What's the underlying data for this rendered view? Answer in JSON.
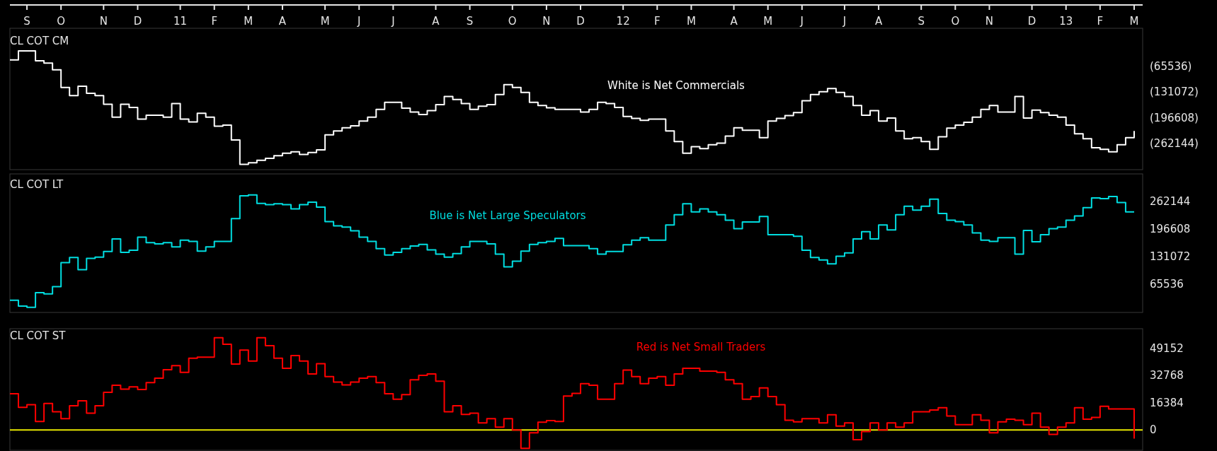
{
  "chart_data": [
    {
      "type": "step",
      "title": "CL COT CM",
      "annotations": [
        "White is Net Commercials"
      ],
      "x": [
        "2010-08-20",
        "2010-08-27",
        "2010-09-03",
        "2010-09-10",
        "2010-09-17",
        "2010-09-24",
        "2010-10-01",
        "2010-10-08",
        "2010-10-15",
        "2010-10-22",
        "2010-10-29",
        "2010-11-05",
        "2010-11-12",
        "2010-11-19",
        "2010-11-26",
        "2010-12-03",
        "2010-12-10",
        "2010-12-17",
        "2010-12-24",
        "2010-12-31",
        "2011-01-07",
        "2011-01-14",
        "2011-01-21",
        "2011-01-28",
        "2011-02-04",
        "2011-02-11",
        "2011-02-18",
        "2011-02-25",
        "2011-03-04",
        "2011-03-11",
        "2011-03-18",
        "2011-03-25",
        "2011-04-01",
        "2011-04-08",
        "2011-04-15",
        "2011-04-22",
        "2011-04-29",
        "2011-05-06",
        "2011-05-13",
        "2011-05-20",
        "2011-05-27",
        "2011-06-03",
        "2011-06-10",
        "2011-06-17",
        "2011-06-24",
        "2011-07-01",
        "2011-07-08",
        "2011-07-15",
        "2011-07-22",
        "2011-07-29",
        "2011-08-05",
        "2011-08-12",
        "2011-08-19",
        "2011-08-26",
        "2011-09-02",
        "2011-09-09",
        "2011-09-16",
        "2011-09-23",
        "2011-09-30",
        "2011-10-07",
        "2011-10-14",
        "2011-10-21",
        "2011-10-28",
        "2011-11-04",
        "2011-11-11",
        "2011-11-18",
        "2011-11-25",
        "2011-12-02",
        "2011-12-09",
        "2011-12-16",
        "2011-12-23",
        "2011-12-30",
        "2012-01-06",
        "2012-01-13",
        "2012-01-20",
        "2012-01-27",
        "2012-02-03",
        "2012-02-10",
        "2012-02-17",
        "2012-02-24",
        "2012-03-02",
        "2012-03-09",
        "2012-03-16",
        "2012-03-23",
        "2012-03-30",
        "2012-04-06",
        "2012-04-13",
        "2012-04-20",
        "2012-04-27",
        "2012-05-04",
        "2012-05-11",
        "2012-05-18",
        "2012-05-25",
        "2012-06-01",
        "2012-06-08",
        "2012-06-15",
        "2012-06-22",
        "2012-06-29",
        "2012-07-06",
        "2012-07-13",
        "2012-07-20",
        "2012-07-27",
        "2012-08-03",
        "2012-08-10",
        "2012-08-17",
        "2012-08-24",
        "2012-08-31",
        "2012-09-07",
        "2012-09-14",
        "2012-09-21",
        "2012-09-28",
        "2012-10-05",
        "2012-10-12",
        "2012-10-19",
        "2012-10-26",
        "2012-11-02",
        "2012-11-09",
        "2012-11-16",
        "2012-11-23",
        "2012-11-30",
        "2012-12-07",
        "2012-12-14",
        "2012-12-21",
        "2012-12-28",
        "2013-01-04",
        "2013-01-11",
        "2013-01-18",
        "2013-01-25",
        "2013-02-01",
        "2013-02-08",
        "2013-02-15",
        "2013-02-22",
        "2013-03-01"
      ],
      "series": [
        {
          "color": "#ffffff",
          "values": [
            -48000,
            -25000,
            -25000,
            -50000,
            -56000,
            -73000,
            -118000,
            -139000,
            -115000,
            -133000,
            -139000,
            -161000,
            -194000,
            -161000,
            -169000,
            -199000,
            -189000,
            -189000,
            -194000,
            -159000,
            -199000,
            -206000,
            -184000,
            -194000,
            -217000,
            -214000,
            -252000,
            -314000,
            -310000,
            -304000,
            -299000,
            -292000,
            -286000,
            -282000,
            -289000,
            -284000,
            -277000,
            -239000,
            -229000,
            -221000,
            -216000,
            -204000,
            -194000,
            -174000,
            -156000,
            -156000,
            -171000,
            -181000,
            -187000,
            -177000,
            -162000,
            -141000,
            -149000,
            -159000,
            -174000,
            -166000,
            -162000,
            -136000,
            -111000,
            -118000,
            -131000,
            -156000,
            -164000,
            -170000,
            -174000,
            -174000,
            -174000,
            -181000,
            -174000,
            -156000,
            -159000,
            -169000,
            -192000,
            -197000,
            -202000,
            -199000,
            -199000,
            -229000,
            -256000,
            -286000,
            -269000,
            -274000,
            -264000,
            -260000,
            -242000,
            -221000,
            -227000,
            -227000,
            -246000,
            -204000,
            -197000,
            -190000,
            -182000,
            -152000,
            -136000,
            -129000,
            -121000,
            -131000,
            -141000,
            -164000,
            -189000,
            -177000,
            -204000,
            -196000,
            -229000,
            -249000,
            -246000,
            -256000,
            -276000,
            -244000,
            -222000,
            -214000,
            -207000,
            -194000,
            -174000,
            -164000,
            -181000,
            -181000,
            -141000,
            -196000,
            -176000,
            -182000,
            -189000,
            -194000,
            -214000,
            -236000,
            -249000,
            -272000,
            -276000,
            -282000,
            -264000,
            -246000,
            -229000
          ]
        }
      ],
      "xlim": [
        "2010-08-20",
        "2013-03-08"
      ],
      "xticks": [
        {
          "value": "2010-09-03",
          "label": "S"
        },
        {
          "value": "2010-10-01",
          "label": "O"
        },
        {
          "value": "2010-11-05",
          "label": "N"
        },
        {
          "value": "2010-12-03",
          "label": "D"
        },
        {
          "value": "2011-01-07",
          "label": "11"
        },
        {
          "value": "2011-02-04",
          "label": "F"
        },
        {
          "value": "2011-03-04",
          "label": "M"
        },
        {
          "value": "2011-04-01",
          "label": "A"
        },
        {
          "value": "2011-05-06",
          "label": "M"
        },
        {
          "value": "2011-06-03",
          "label": "J"
        },
        {
          "value": "2011-07-01",
          "label": "J"
        },
        {
          "value": "2011-08-05",
          "label": "A"
        },
        {
          "value": "2011-09-02",
          "label": "S"
        },
        {
          "value": "2011-10-07",
          "label": "O"
        },
        {
          "value": "2011-11-04",
          "label": "N"
        },
        {
          "value": "2011-12-02",
          "label": "D"
        },
        {
          "value": "2012-01-06",
          "label": "12"
        },
        {
          "value": "2012-02-03",
          "label": "F"
        },
        {
          "value": "2012-03-02",
          "label": "M"
        },
        {
          "value": "2012-04-06",
          "label": "A"
        },
        {
          "value": "2012-05-04",
          "label": "M"
        },
        {
          "value": "2012-06-01",
          "label": "J"
        },
        {
          "value": "2012-07-06",
          "label": "J"
        },
        {
          "value": "2012-08-03",
          "label": "A"
        },
        {
          "value": "2012-09-07",
          "label": "S"
        },
        {
          "value": "2012-10-05",
          "label": "O"
        },
        {
          "value": "2012-11-02",
          "label": "N"
        },
        {
          "value": "2012-12-07",
          "label": "D"
        },
        {
          "value": "2013-01-04",
          "label": "13"
        },
        {
          "value": "2013-02-01",
          "label": "F"
        },
        {
          "value": "2013-03-01",
          "label": "M"
        }
      ],
      "ylim": [
        -327680,
        32768
      ],
      "yticks": [
        {
          "value": -65536,
          "label": "(65536)"
        },
        {
          "value": -131072,
          "label": "(131072)"
        },
        {
          "value": -196608,
          "label": "(196608)"
        },
        {
          "value": -262144,
          "label": "(262144)"
        }
      ]
    },
    {
      "type": "step",
      "title": "CL COT LT",
      "annotations": [
        "Blue is Net Large Speculators"
      ],
      "x": [
        "2010-08-20",
        "2010-08-27",
        "2010-09-03",
        "2010-09-10",
        "2010-09-17",
        "2010-09-24",
        "2010-10-01",
        "2010-10-08",
        "2010-10-15",
        "2010-10-22",
        "2010-10-29",
        "2010-11-05",
        "2010-11-12",
        "2010-11-19",
        "2010-11-26",
        "2010-12-03",
        "2010-12-10",
        "2010-12-17",
        "2010-12-24",
        "2010-12-31",
        "2011-01-07",
        "2011-01-14",
        "2011-01-21",
        "2011-01-28",
        "2011-02-04",
        "2011-02-11",
        "2011-02-18",
        "2011-02-25",
        "2011-03-04",
        "2011-03-11",
        "2011-03-18",
        "2011-03-25",
        "2011-04-01",
        "2011-04-08",
        "2011-04-15",
        "2011-04-22",
        "2011-04-29",
        "2011-05-06",
        "2011-05-13",
        "2011-05-20",
        "2011-05-27",
        "2011-06-03",
        "2011-06-10",
        "2011-06-17",
        "2011-06-24",
        "2011-07-01",
        "2011-07-08",
        "2011-07-15",
        "2011-07-22",
        "2011-07-29",
        "2011-08-05",
        "2011-08-12",
        "2011-08-19",
        "2011-08-26",
        "2011-09-02",
        "2011-09-09",
        "2011-09-16",
        "2011-09-23",
        "2011-09-30",
        "2011-10-07",
        "2011-10-14",
        "2011-10-21",
        "2011-10-28",
        "2011-11-04",
        "2011-11-11",
        "2011-11-18",
        "2011-11-25",
        "2011-12-02",
        "2011-12-09",
        "2011-12-16",
        "2011-12-23",
        "2011-12-30",
        "2012-01-06",
        "2012-01-13",
        "2012-01-20",
        "2012-01-27",
        "2012-02-03",
        "2012-02-10",
        "2012-02-17",
        "2012-02-24",
        "2012-03-02",
        "2012-03-09",
        "2012-03-16",
        "2012-03-23",
        "2012-03-30",
        "2012-04-06",
        "2012-04-13",
        "2012-04-20",
        "2012-04-27",
        "2012-05-04",
        "2012-05-11",
        "2012-05-18",
        "2012-05-25",
        "2012-06-01",
        "2012-06-08",
        "2012-06-15",
        "2012-06-22",
        "2012-06-29",
        "2012-07-06",
        "2012-07-13",
        "2012-07-20",
        "2012-07-27",
        "2012-08-03",
        "2012-08-10",
        "2012-08-17",
        "2012-08-24",
        "2012-08-31",
        "2012-09-07",
        "2012-09-14",
        "2012-09-21",
        "2012-09-28",
        "2012-10-05",
        "2012-10-12",
        "2012-10-19",
        "2012-10-26",
        "2012-11-02",
        "2012-11-09",
        "2012-11-16",
        "2012-11-23",
        "2012-11-30",
        "2012-12-07",
        "2012-12-14",
        "2012-12-21",
        "2012-12-28",
        "2013-01-04",
        "2013-01-11",
        "2013-01-18",
        "2013-01-25",
        "2013-02-01",
        "2013-02-08",
        "2013-02-15",
        "2013-02-22",
        "2013-03-01"
      ],
      "series": [
        {
          "color": "#00dde0",
          "values": [
            29000,
            15000,
            12000,
            47000,
            44000,
            61000,
            118000,
            130000,
            101000,
            128000,
            131000,
            144000,
            174000,
            142000,
            147000,
            178000,
            165000,
            162000,
            165000,
            155000,
            171000,
            168000,
            145000,
            155000,
            168000,
            168000,
            222000,
            276000,
            278000,
            258000,
            255000,
            257000,
            255000,
            245000,
            255000,
            261000,
            249000,
            215000,
            205000,
            202000,
            193000,
            178000,
            168000,
            151000,
            136000,
            142000,
            151000,
            157000,
            161000,
            148000,
            138000,
            131000,
            139000,
            155000,
            168000,
            168000,
            162000,
            138000,
            108000,
            121000,
            145000,
            161000,
            165000,
            168000,
            175000,
            158000,
            158000,
            158000,
            151000,
            138000,
            144000,
            144000,
            160000,
            171000,
            177000,
            171000,
            171000,
            207000,
            231000,
            257000,
            238000,
            245000,
            238000,
            231000,
            218000,
            198000,
            214000,
            214000,
            227000,
            184000,
            184000,
            184000,
            180000,
            147000,
            130000,
            124000,
            115000,
            133000,
            141000,
            174000,
            191000,
            174000,
            207000,
            195000,
            231000,
            251000,
            242000,
            251000,
            268000,
            234000,
            218000,
            215000,
            207000,
            188000,
            171000,
            168000,
            177000,
            177000,
            138000,
            194000,
            167000,
            184000,
            198000,
            202000,
            218000,
            228000,
            248000,
            271000,
            269000,
            274000,
            260000,
            238000,
            238000
          ]
        }
      ],
      "xlim": [
        "2010-08-20",
        "2013-03-08"
      ],
      "tick_labels": "y",
      "ylim": [
        0,
        327680
      ],
      "yticks": [
        65536,
        131072,
        196608,
        262144
      ]
    },
    {
      "type": "step",
      "title": "CL COT ST",
      "annotations": [
        "Red is Net Small Traders"
      ],
      "x": [
        "2010-08-20",
        "2010-08-27",
        "2010-09-03",
        "2010-09-10",
        "2010-09-17",
        "2010-09-24",
        "2010-10-01",
        "2010-10-08",
        "2010-10-15",
        "2010-10-22",
        "2010-10-29",
        "2010-11-05",
        "2010-11-12",
        "2010-11-19",
        "2010-11-26",
        "2010-12-03",
        "2010-12-10",
        "2010-12-17",
        "2010-12-24",
        "2010-12-31",
        "2011-01-07",
        "2011-01-14",
        "2011-01-21",
        "2011-01-28",
        "2011-02-04",
        "2011-02-11",
        "2011-02-18",
        "2011-02-25",
        "2011-03-04",
        "2011-03-11",
        "2011-03-18",
        "2011-03-25",
        "2011-04-01",
        "2011-04-08",
        "2011-04-15",
        "2011-04-22",
        "2011-04-29",
        "2011-05-06",
        "2011-05-13",
        "2011-05-20",
        "2011-05-27",
        "2011-06-03",
        "2011-06-10",
        "2011-06-17",
        "2011-06-24",
        "2011-07-01",
        "2011-07-08",
        "2011-07-15",
        "2011-07-22",
        "2011-07-29",
        "2011-08-05",
        "2011-08-12",
        "2011-08-19",
        "2011-08-26",
        "2011-09-02",
        "2011-09-09",
        "2011-09-16",
        "2011-09-23",
        "2011-09-30",
        "2011-10-07",
        "2011-10-14",
        "2011-10-21",
        "2011-10-28",
        "2011-11-04",
        "2011-11-11",
        "2011-11-18",
        "2011-11-25",
        "2011-12-02",
        "2011-12-09",
        "2011-12-16",
        "2011-12-23",
        "2011-12-30",
        "2012-01-06",
        "2012-01-13",
        "2012-01-20",
        "2012-01-27",
        "2012-02-03",
        "2012-02-10",
        "2012-02-17",
        "2012-02-24",
        "2012-03-02",
        "2012-03-09",
        "2012-03-16",
        "2012-03-23",
        "2012-03-30",
        "2012-04-06",
        "2012-04-13",
        "2012-04-20",
        "2012-04-27",
        "2012-05-04",
        "2012-05-11",
        "2012-05-18",
        "2012-05-25",
        "2012-06-01",
        "2012-06-08",
        "2012-06-15",
        "2012-06-22",
        "2012-06-29",
        "2012-07-06",
        "2012-07-13",
        "2012-07-20",
        "2012-07-27",
        "2012-08-03",
        "2012-08-10",
        "2012-08-17",
        "2012-08-24",
        "2012-08-31",
        "2012-09-07",
        "2012-09-14",
        "2012-09-21",
        "2012-09-28",
        "2012-10-05",
        "2012-10-12",
        "2012-10-19",
        "2012-10-26",
        "2012-11-02",
        "2012-11-09",
        "2012-11-16",
        "2012-11-23",
        "2012-11-30",
        "2012-12-07",
        "2012-12-14",
        "2012-12-21",
        "2012-12-28",
        "2013-01-04",
        "2013-01-11",
        "2013-01-18",
        "2013-01-25",
        "2013-02-01",
        "2013-02-08",
        "2013-02-15",
        "2013-02-22",
        "2013-03-01"
      ],
      "series": [
        {
          "color": "#ff0000",
          "values": [
            22000,
            13700,
            15400,
            5200,
            16100,
            11100,
            6900,
            14700,
            17700,
            10200,
            14700,
            22900,
            27200,
            24800,
            26200,
            24600,
            28800,
            31400,
            36600,
            39000,
            35000,
            43500,
            44200,
            44200,
            56000,
            52000,
            40000,
            48500,
            41800,
            56000,
            51100,
            43500,
            37400,
            45200,
            41800,
            34000,
            40200,
            32400,
            29100,
            27400,
            29100,
            31400,
            32400,
            28800,
            22000,
            18700,
            21500,
            30500,
            33100,
            34000,
            29600,
            11100,
            14700,
            9500,
            10200,
            4300,
            6900,
            1700,
            6900,
            0,
            -11100,
            -1700,
            4700,
            5700,
            5200,
            20600,
            22200,
            28100,
            27200,
            18700,
            18700,
            28100,
            36400,
            32400,
            28100,
            31400,
            32400,
            27200,
            34000,
            37400,
            37400,
            35700,
            35700,
            35000,
            30500,
            28100,
            18700,
            20300,
            25500,
            20300,
            15400,
            5900,
            5000,
            6900,
            6900,
            4300,
            9200,
            2400,
            4300,
            -5900,
            -900,
            4300,
            0,
            4300,
            1700,
            4300,
            11100,
            11100,
            12100,
            13500,
            8500,
            3300,
            3300,
            9200,
            5900,
            -1700,
            5000,
            6600,
            5900,
            3300,
            10200,
            1700,
            -2600,
            1700,
            4300,
            13500,
            6600,
            7600,
            14400,
            12800,
            12800,
            12800,
            -5200
          ]
        }
      ],
      "xlim": [
        "2010-08-20",
        "2013-03-08"
      ],
      "tick_labels": "y",
      "ylim": [
        -12288,
        61440
      ],
      "yticks": [
        0,
        16384,
        32768,
        49152
      ],
      "ref_lines": [
        {
          "axis": "y",
          "value": 0,
          "color": "#e6e600"
        }
      ]
    }
  ]
}
